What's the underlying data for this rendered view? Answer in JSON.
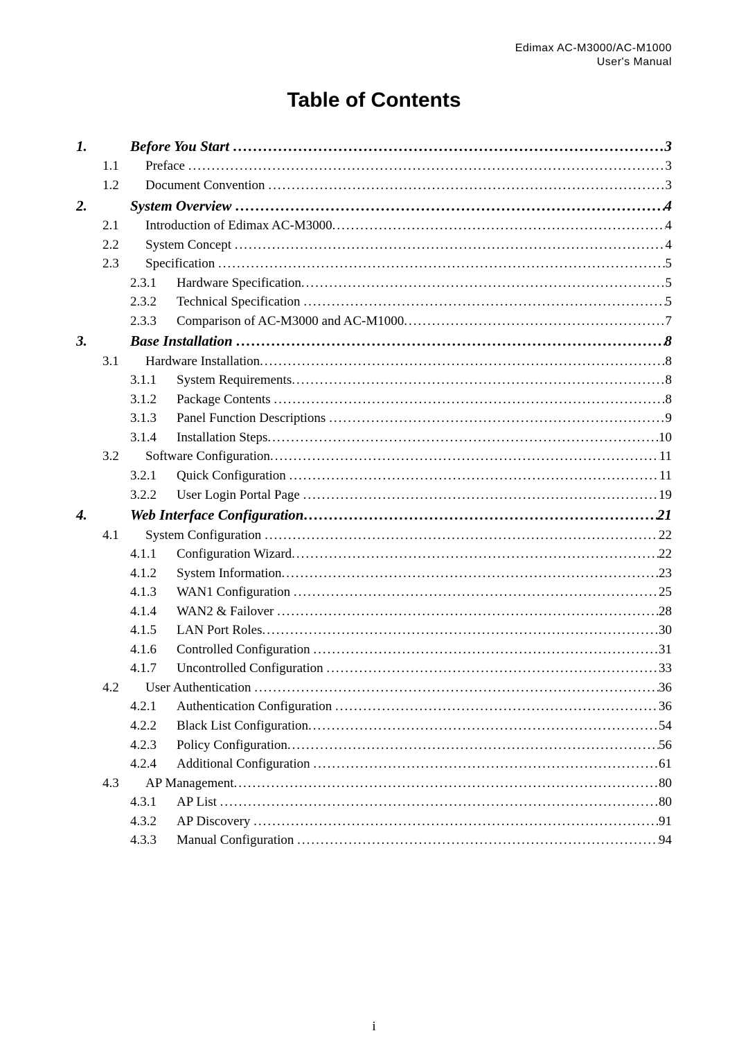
{
  "header": {
    "line1": "Edimax  AC-M3000/AC-M1000",
    "line2": "User's  Manual"
  },
  "title": "Table of Contents",
  "page_footer": "i",
  "styles": {
    "body_font": "Times New Roman",
    "header_font": "Arial",
    "title_font": "Arial",
    "title_font_size_pt": 22,
    "body_font_size_pt": 14,
    "lvl1_bold": true,
    "lvl1_italic": true,
    "background_color": "#ffffff",
    "text_color": "#000000",
    "leader_char": "."
  },
  "toc": [
    {
      "level": 1,
      "num": "1.",
      "label": "Before You Start ",
      "page": "3"
    },
    {
      "level": 2,
      "num": "1.1",
      "label": "Preface ",
      "page": "3"
    },
    {
      "level": 2,
      "num": "1.2",
      "label": "Document Convention ",
      "page": "3"
    },
    {
      "level": 1,
      "num": "2.",
      "label": "System Overview ",
      "page": "4"
    },
    {
      "level": 2,
      "num": "2.1",
      "label": "Introduction of Edimax AC-M3000",
      "page": "4"
    },
    {
      "level": 2,
      "num": "2.2",
      "label": "System Concept ",
      "page": "4"
    },
    {
      "level": 2,
      "num": "2.3",
      "label": "Specification ",
      "page": "5"
    },
    {
      "level": 3,
      "num": "2.3.1",
      "label": "Hardware Specification",
      "page": "5"
    },
    {
      "level": 3,
      "num": "2.3.2",
      "label": "Technical Specification ",
      "page": "5"
    },
    {
      "level": 3,
      "num": "2.3.3",
      "label": "Comparison of AC-M3000 and AC-M1000",
      "page": "7"
    },
    {
      "level": 1,
      "num": "3.",
      "label": "Base Installation ",
      "page": "8"
    },
    {
      "level": 2,
      "num": "3.1",
      "label": "Hardware Installation",
      "page": "8"
    },
    {
      "level": 3,
      "num": "3.1.1",
      "label": "System Requirements",
      "page": "8"
    },
    {
      "level": 3,
      "num": "3.1.2",
      "label": "Package Contents ",
      "page": "8"
    },
    {
      "level": 3,
      "num": "3.1.3",
      "label": "Panel Function Descriptions ",
      "page": "9"
    },
    {
      "level": 3,
      "num": "3.1.4",
      "label": "Installation Steps",
      "page": "10"
    },
    {
      "level": 2,
      "num": "3.2",
      "label": "Software Configuration",
      "page": "11"
    },
    {
      "level": 3,
      "num": "3.2.1",
      "label": "Quick Configuration ",
      "page": "11"
    },
    {
      "level": 3,
      "num": "3.2.2",
      "label": "User Login Portal Page ",
      "page": "19"
    },
    {
      "level": 1,
      "num": "4.",
      "label": "Web Interface Configuration",
      "page": "21"
    },
    {
      "level": 2,
      "num": "4.1",
      "label": "System Configuration ",
      "page": "22"
    },
    {
      "level": 3,
      "num": "4.1.1",
      "label": "Configuration Wizard",
      "page": "22"
    },
    {
      "level": 3,
      "num": "4.1.2",
      "label": "System Information",
      "page": "23"
    },
    {
      "level": 3,
      "num": "4.1.3",
      "label": "WAN1 Configuration ",
      "page": "25"
    },
    {
      "level": 3,
      "num": "4.1.4",
      "label": "WAN2 & Failover ",
      "page": "28"
    },
    {
      "level": 3,
      "num": "4.1.5",
      "label": "LAN Port Roles",
      "page": "30"
    },
    {
      "level": 3,
      "num": "4.1.6",
      "label": "Controlled Configuration ",
      "page": "31"
    },
    {
      "level": 3,
      "num": "4.1.7",
      "label": "Uncontrolled Configuration ",
      "page": "33"
    },
    {
      "level": 2,
      "num": "4.2",
      "label": "User Authentication ",
      "page": "36"
    },
    {
      "level": 3,
      "num": "4.2.1",
      "label": "Authentication Configuration ",
      "page": "36"
    },
    {
      "level": 3,
      "num": "4.2.2",
      "label": "Black List Configuration",
      "page": "54"
    },
    {
      "level": 3,
      "num": "4.2.3",
      "label": "Policy Configuration",
      "page": "56"
    },
    {
      "level": 3,
      "num": "4.2.4",
      "label": "Additional Configuration ",
      "page": "61"
    },
    {
      "level": 2,
      "num": "4.3",
      "label": "AP Management",
      "page": "80"
    },
    {
      "level": 3,
      "num": "4.3.1",
      "label": "AP List ",
      "page": "80"
    },
    {
      "level": 3,
      "num": "4.3.2",
      "label": "AP Discovery ",
      "page": "91"
    },
    {
      "level": 3,
      "num": "4.3.3",
      "label": "Manual Configuration ",
      "page": "94"
    }
  ]
}
